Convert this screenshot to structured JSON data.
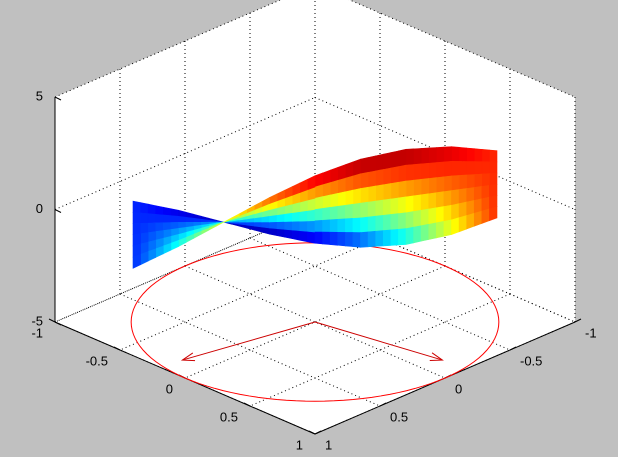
{
  "chart_data": {
    "type": "surface3d",
    "xlim": [
      -1,
      1
    ],
    "xticks": [
      -1,
      -0.5,
      0,
      0.5,
      1
    ],
    "ylim": [
      -1,
      1
    ],
    "yticks": [
      -1,
      -0.5,
      0,
      0.5,
      1
    ],
    "zlim": [
      -5,
      5
    ],
    "zticks": [
      -5,
      0,
      5
    ],
    "grid": true,
    "surface": {
      "x": [
        [
          -0.4,
          -0.248,
          -0.138,
          -0.06,
          0,
          0.06,
          0.138,
          0.248,
          0.4
        ],
        [
          -1.0,
          -0.802,
          -0.562,
          -0.29,
          0,
          0.29,
          0.562,
          0.802,
          1.0
        ]
      ],
      "y": [
        [
          1.0,
          0.802,
          0.562,
          0.29,
          0,
          -0.29,
          -0.562,
          -0.802,
          -1.0
        ],
        [
          0.4,
          0.248,
          0.138,
          0.06,
          0,
          -0.06,
          -0.138,
          -0.248,
          -0.4
        ]
      ],
      "z": [
        [
          -1.12,
          -0.266,
          0.5,
          1.106,
          1.5,
          1.666,
          1.62,
          1.414,
          1.12
        ],
        [
          -1.12,
          -1.414,
          -1.62,
          -1.666,
          -1.5,
          -1.106,
          -0.5,
          0.266,
          1.12
        ]
      ]
    },
    "circle": {
      "radius": 1,
      "z": -5,
      "color": "#ff0000"
    },
    "arrows": {
      "x": [
        -0.17,
        0.83
      ],
      "y": [
        0.85,
        -0.15
      ],
      "z": -5,
      "color": "#cc0000"
    }
  }
}
